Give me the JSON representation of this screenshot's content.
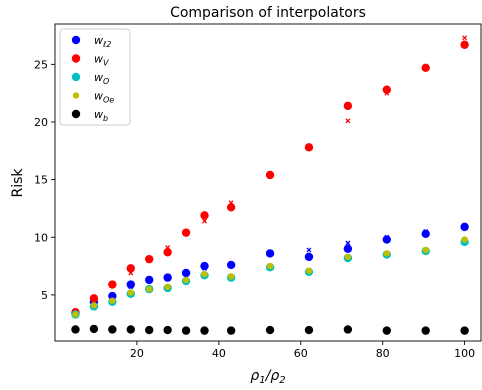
{
  "chart_data": {
    "type": "scatter",
    "title": "Comparison of interpolators",
    "xlabel": "ρ1/ρ2",
    "ylabel": "Risk",
    "xlim": [
      0,
      104
    ],
    "ylim": [
      1,
      28.5
    ],
    "x_ticks": [
      20,
      40,
      60,
      80,
      100
    ],
    "y_ticks": [
      5,
      10,
      15,
      20,
      25
    ],
    "x_tick_labels": [
      "20",
      "40",
      "60",
      "80",
      "100"
    ],
    "y_tick_labels": [
      "5",
      "10",
      "15",
      "20",
      "25"
    ],
    "grid": false,
    "legend_position": "top-left",
    "x": [
      5,
      9.5,
      14,
      18.5,
      23,
      27.5,
      32,
      36.5,
      43,
      52.5,
      62,
      71.5,
      81,
      90.5,
      100
    ],
    "series": [
      {
        "name": "w_ℓ2",
        "legend_main": "w",
        "legend_sub": "ℓ2",
        "color": "#0000ff",
        "values": [
          3.4,
          4.4,
          4.9,
          5.9,
          6.3,
          6.5,
          6.9,
          7.5,
          7.6,
          8.6,
          8.3,
          9.0,
          9.8,
          10.3,
          10.9
        ],
        "cross_values": [
          3.3,
          4.2,
          4.8,
          5.7,
          6.2,
          6.6,
          7.0,
          7.3,
          7.5,
          8.6,
          8.9,
          9.5,
          10.0,
          10.5,
          11.0
        ]
      },
      {
        "name": "w_V",
        "legend_main": "w",
        "legend_sub": "V",
        "color": "#ff0000",
        "values": [
          3.5,
          4.7,
          5.9,
          7.3,
          8.1,
          8.7,
          10.4,
          11.9,
          12.6,
          15.4,
          17.8,
          21.4,
          22.8,
          24.7,
          26.7
        ],
        "cross_values": [
          3.4,
          4.6,
          5.8,
          6.9,
          8.0,
          9.1,
          10.4,
          11.4,
          13.0,
          15.4,
          17.8,
          20.1,
          22.5,
          24.7,
          27.3
        ]
      },
      {
        "name": "w_O",
        "legend_main": "w",
        "legend_sub": "O",
        "color": "#00bfbf",
        "values": [
          3.3,
          4.0,
          4.4,
          5.1,
          5.5,
          5.6,
          6.2,
          6.7,
          6.5,
          7.4,
          7.0,
          8.2,
          8.5,
          8.8,
          9.6
        ]
      },
      {
        "name": "w_Oe",
        "legend_main": "w",
        "legend_sub": "Oe",
        "color": "#bfbf00",
        "values": [
          3.3,
          4.1,
          4.5,
          5.2,
          5.5,
          5.7,
          6.3,
          6.8,
          6.6,
          7.5,
          7.1,
          8.3,
          8.6,
          8.9,
          9.8
        ]
      },
      {
        "name": "w_b",
        "legend_main": "w",
        "legend_sub": "b",
        "color": "#000000",
        "values": [
          2.0,
          2.05,
          2.0,
          2.0,
          1.95,
          1.95,
          1.9,
          1.9,
          1.9,
          1.95,
          1.95,
          2.0,
          1.9,
          1.9,
          1.9
        ]
      }
    ]
  }
}
